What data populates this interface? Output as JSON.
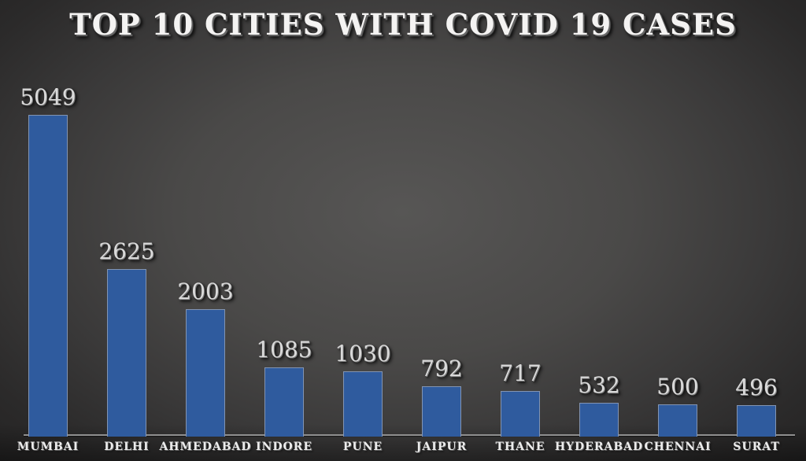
{
  "title": "TOP 10 CITIES WITH COVID 19 CASES",
  "chart_data": {
    "type": "bar",
    "title": "TOP 10 CITIES WITH COVID 19 CASES",
    "categories": [
      "MUMBAI",
      "DELHI",
      "AHMEDABAD",
      "INDORE",
      "PUNE",
      "JAIPUR",
      "THANE",
      "HYDERABAD",
      "CHENNAI",
      "SURAT"
    ],
    "values": [
      5049,
      2625,
      2003,
      1085,
      1030,
      792,
      717,
      532,
      500,
      496
    ],
    "value_labels": [
      "5049",
      "2625",
      "2003",
      "1085",
      "1030",
      "792",
      "717",
      "532",
      "500",
      "496"
    ],
    "xlabel": "",
    "ylabel": "",
    "ylim": [
      0,
      5049
    ],
    "grid": false,
    "legend": "none",
    "colors": {
      "bar_fill": "#2f5b9e",
      "bar_border": "#8294b2",
      "axis_line": "#8f8f8f",
      "title_text": "#f4f3f2",
      "value_text": "#dadada",
      "category_text": "#ececec",
      "background_center": "#575655",
      "background_edge": "#222121"
    }
  }
}
